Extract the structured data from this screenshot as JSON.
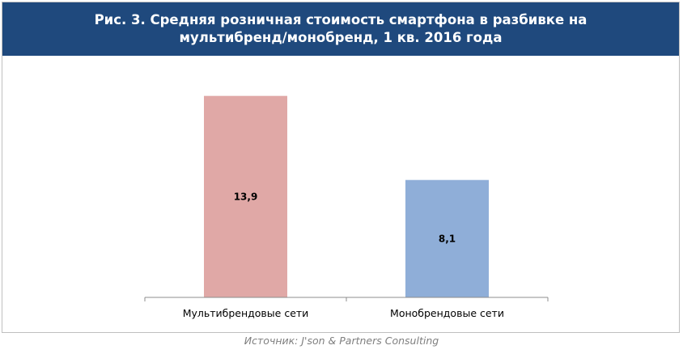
{
  "title": "Рис. 3. Средняя розничная стоимость смартфона в разбивке на мультибренд/монобренд, 1 кв. 2016 года",
  "source": "Источник: J'son & Partners Consulting",
  "colors": {
    "header_bg": "#1f497d",
    "bar_multi": "#e0a8a6",
    "bar_mono": "#8faed8",
    "axis": "#8c8c8c"
  },
  "chart_data": {
    "type": "bar",
    "title": "Рис. 3. Средняя розничная стоимость смартфона в разбивке на мультибренд/монобренд, 1 кв. 2016 года",
    "xlabel": "",
    "ylabel": "",
    "categories": [
      "Мультибрендовые сети",
      "Монобрендовые сети"
    ],
    "values": [
      13.9,
      8.1
    ],
    "value_labels": [
      "13,9",
      "8,1"
    ],
    "ylim": [
      0,
      16
    ],
    "grid": false,
    "legend": "none"
  }
}
